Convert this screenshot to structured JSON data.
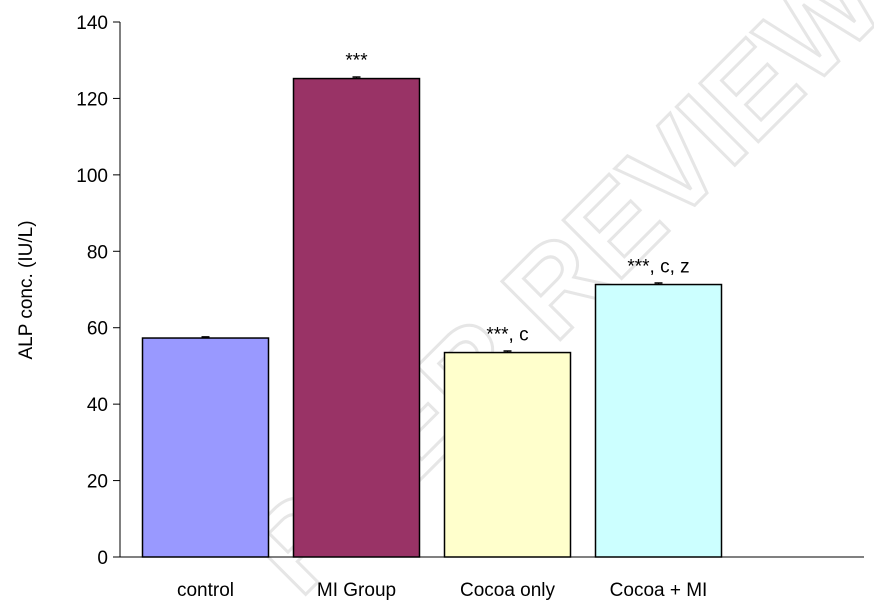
{
  "chart_data": {
    "type": "bar",
    "categories": [
      "control",
      "MI Group",
      "Cocoa only",
      "Cocoa + MI"
    ],
    "values": [
      57.3,
      125.2,
      53.5,
      71.3
    ],
    "errors": [
      0.3,
      0.4,
      0.4,
      0.4
    ],
    "annotations": [
      "",
      "***",
      "***, c",
      "***, c, z"
    ],
    "ylabel": "ALP conc. (IU/L)",
    "ylim": [
      0,
      140
    ],
    "yticks": [
      0,
      20,
      40,
      60,
      80,
      100,
      120,
      140
    ],
    "grid": false,
    "legend": "none",
    "colors": [
      "#9999ff",
      "#993366",
      "#ffffcc",
      "#ccffff"
    ],
    "edge_color": "#000000"
  },
  "watermark": {
    "text": "PEER REVIEW",
    "color": "#e6e6e6"
  }
}
